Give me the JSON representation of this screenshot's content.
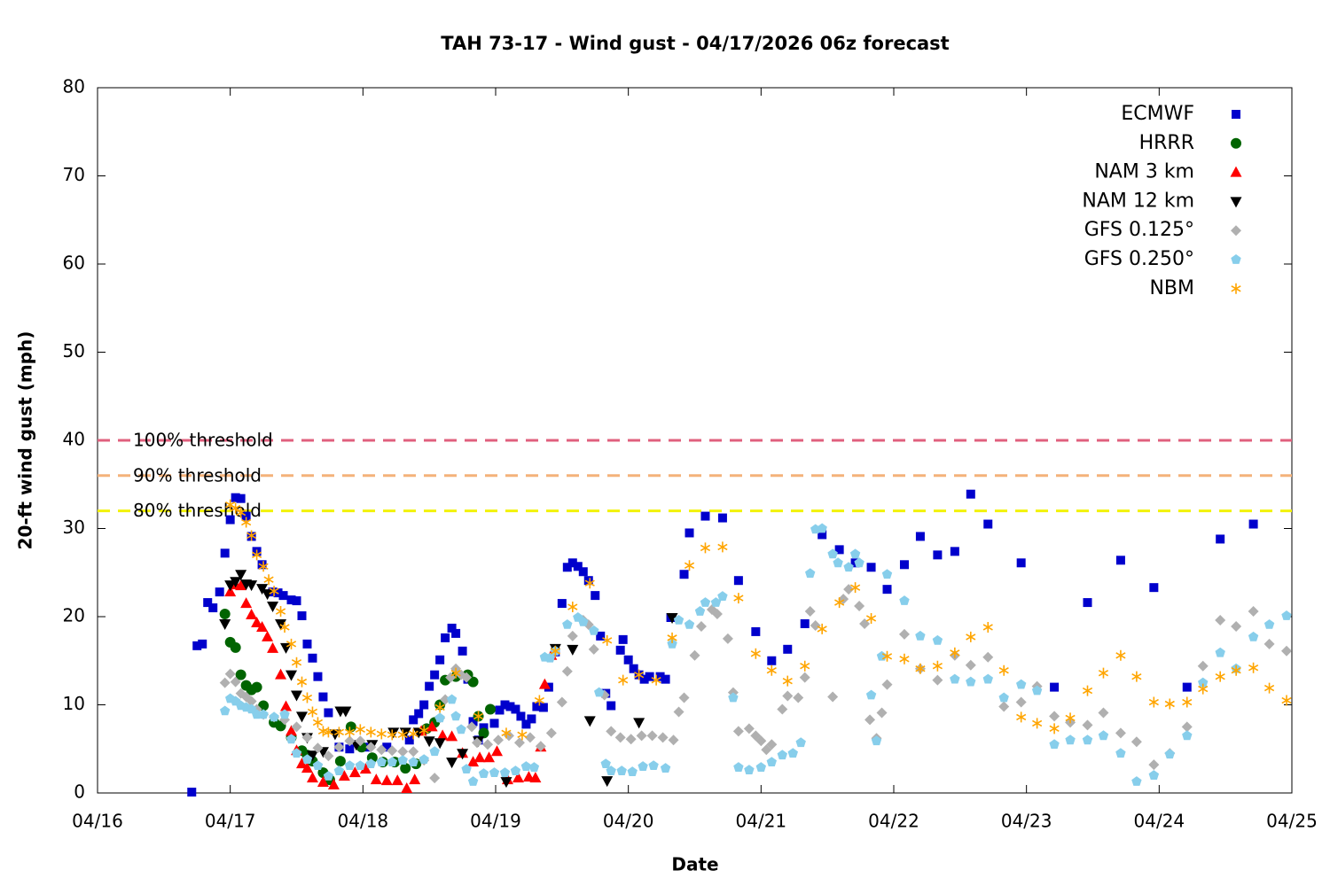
{
  "chart_data": {
    "type": "scatter",
    "title": "TAH 73-17 - Wind gust - 04/17/2026 06z forecast",
    "xlabel": "Date",
    "ylabel": "20-ft wind gust (mph)",
    "xlim": [
      16,
      25
    ],
    "ylim": [
      0,
      80
    ],
    "xticks": [
      {
        "value": 16,
        "label": "04/16"
      },
      {
        "value": 17,
        "label": "04/17"
      },
      {
        "value": 18,
        "label": "04/18"
      },
      {
        "value": 19,
        "label": "04/19"
      },
      {
        "value": 20,
        "label": "04/20"
      },
      {
        "value": 21,
        "label": "04/21"
      },
      {
        "value": 22,
        "label": "04/22"
      },
      {
        "value": 23,
        "label": "04/23"
      },
      {
        "value": 24,
        "label": "04/24"
      },
      {
        "value": 25,
        "label": "04/25"
      }
    ],
    "yticks": [
      0,
      10,
      20,
      30,
      40,
      50,
      60,
      70,
      80
    ],
    "grid": false,
    "legend": "top-right",
    "thresholds": [
      {
        "label": "100% threshold",
        "value": 40,
        "color": "#e0607e"
      },
      {
        "label": "90% threshold",
        "value": 36,
        "color": "#f4b27a"
      },
      {
        "label": "80% threshold",
        "value": 32,
        "color": "#f2f20a"
      }
    ],
    "series": [
      {
        "name": "ECMWF",
        "color": "#0000cc",
        "marker": "square",
        "x": [
          16.71,
          16.75,
          16.79,
          16.83,
          16.87,
          16.92,
          16.96,
          17.0,
          17.04,
          17.08,
          17.12,
          17.16,
          17.2,
          17.24,
          17.32,
          17.36,
          17.4,
          17.46,
          17.5,
          17.54,
          17.58,
          17.62,
          17.66,
          17.7,
          17.74,
          17.82,
          17.9,
          18.02,
          18.18,
          18.35,
          18.38,
          18.42,
          18.46,
          18.5,
          18.54,
          18.58,
          18.62,
          18.67,
          18.7,
          18.75,
          18.79,
          18.83,
          18.87,
          18.91,
          18.99,
          19.03,
          19.07,
          19.11,
          19.15,
          19.19,
          19.23,
          19.27,
          19.31,
          19.36,
          19.4,
          19.45,
          19.5,
          19.54,
          19.58,
          19.62,
          19.66,
          19.7,
          19.75,
          19.79,
          19.83,
          19.87,
          19.94,
          19.96,
          20.0,
          20.04,
          20.08,
          20.12,
          20.16,
          20.24,
          20.28,
          20.32,
          20.42,
          20.46,
          20.58,
          20.71,
          20.83,
          20.96,
          21.08,
          21.2,
          21.33,
          21.46,
          21.59,
          21.71,
          21.83,
          21.95,
          22.08,
          22.2,
          22.33,
          22.46,
          22.58,
          22.71,
          22.96,
          23.21,
          23.46,
          23.71,
          23.96,
          24.21,
          24.46,
          24.71
        ],
        "values": [
          0.1,
          16.7,
          16.9,
          21.6,
          21,
          22.8,
          27.2,
          31,
          33.5,
          33.4,
          31.4,
          29.1,
          27.4,
          25.9,
          22.8,
          22.7,
          22.4,
          21.9,
          21.8,
          20.1,
          16.9,
          15.3,
          13.2,
          10.9,
          9.1,
          5.2,
          5,
          5.2,
          5.2,
          6,
          8.3,
          9,
          10,
          12.1,
          13.4,
          15.1,
          17.6,
          18.7,
          18.1,
          16.1,
          12.9,
          8.1,
          6,
          7.4,
          7.9,
          9.4,
          10,
          9.8,
          9.5,
          8.7,
          7.8,
          8.4,
          9.8,
          9.7,
          12,
          16,
          21.5,
          25.6,
          26.1,
          25.7,
          25.1,
          24.1,
          22.4,
          17.8,
          11.3,
          9.9,
          16.2,
          17.4,
          15.1,
          14.1,
          13.4,
          12.9,
          13.2,
          13.2,
          12.9,
          19.9,
          24.8,
          29.5,
          31.4,
          31.2,
          24.1,
          18.3,
          15,
          16.3,
          19.2,
          29.3,
          27.6,
          26.1,
          25.6,
          23.1,
          25.9,
          29.1,
          27,
          27.4,
          33.9,
          30.5,
          26.1,
          12,
          21.6,
          26.4,
          23.3,
          12,
          28.8,
          30.5
        ]
      },
      {
        "name": "HRRR",
        "color": "#006400",
        "marker": "circle",
        "x": [
          16.96,
          17.0,
          17.04,
          17.08,
          17.12,
          17.16,
          17.2,
          17.25,
          17.33,
          17.38,
          17.46,
          17.54,
          17.58,
          17.62,
          17.7,
          17.75,
          17.83,
          17.91,
          17.99,
          18.07,
          18.15,
          18.24,
          18.32,
          18.4,
          18.48,
          18.54,
          18.58,
          18.62,
          18.7,
          18.79,
          18.83,
          18.87,
          18.91,
          18.96
        ],
        "values": [
          20.3,
          17.1,
          16.5,
          13.4,
          12.2,
          11.7,
          12,
          9.9,
          8,
          7.6,
          6.3,
          4.8,
          4.3,
          3.6,
          2.3,
          1.5,
          3.6,
          7.5,
          5.2,
          4,
          3.5,
          3.5,
          2.8,
          3.3,
          7.3,
          8,
          10,
          12.8,
          13.2,
          13.4,
          12.6,
          8.7,
          6.8,
          9.5
        ]
      },
      {
        "name": "NAM 3 km",
        "color": "#ff0000",
        "marker": "triangle-up",
        "x": [
          17.0,
          17.04,
          17.08,
          17.12,
          17.16,
          17.2,
          17.24,
          17.28,
          17.32,
          17.38,
          17.42,
          17.46,
          17.5,
          17.54,
          17.58,
          17.62,
          17.7,
          17.78,
          17.86,
          17.94,
          18.02,
          18.1,
          18.18,
          18.26,
          18.33,
          18.39,
          18.44,
          18.52,
          18.6,
          18.67,
          18.75,
          18.83,
          18.88,
          18.95,
          19.01,
          19.09,
          19.17,
          19.25,
          19.3,
          19.34,
          19.37,
          19.42
        ],
        "values": [
          22.8,
          23.6,
          23.5,
          21.5,
          20.2,
          19.3,
          18.8,
          17.7,
          16.4,
          13.4,
          9.8,
          7,
          4.8,
          3.3,
          2.8,
          1.7,
          1.2,
          0.9,
          1.9,
          2.3,
          2.7,
          1.5,
          1.4,
          1.4,
          0.5,
          1.5,
          7,
          7.5,
          6.5,
          6.4,
          4.5,
          3.5,
          4,
          4,
          4.7,
          1.5,
          1.7,
          1.8,
          1.7,
          5.2,
          12.3,
          15.6
        ]
      },
      {
        "name": "NAM 12 km",
        "color": "#000000",
        "marker": "triangle-down",
        "x": [
          16.96,
          17.0,
          17.04,
          17.08,
          17.12,
          17.16,
          17.24,
          17.28,
          17.32,
          17.38,
          17.42,
          17.46,
          17.5,
          17.54,
          17.58,
          17.62,
          17.7,
          17.79,
          17.83,
          17.87,
          17.95,
          18.07,
          18.23,
          18.32,
          18.42,
          18.5,
          18.58,
          18.67,
          18.75,
          18.87,
          19.08,
          19.45,
          19.58,
          19.71,
          19.84,
          20.08,
          20.33
        ],
        "values": [
          19.2,
          23.6,
          24,
          24.8,
          23.7,
          23.6,
          23.2,
          22.6,
          21.2,
          19.2,
          16.5,
          13.4,
          11.1,
          8.7,
          6.3,
          4.3,
          4.7,
          6.7,
          9.3,
          9.3,
          5.5,
          5.5,
          6.9,
          6.9,
          6.9,
          5.9,
          5.7,
          3.5,
          4.5,
          5.9,
          1.3,
          16.4,
          16.3,
          8.2,
          1.4,
          8,
          19.9
        ]
      },
      {
        "name": "GFS 0.125°",
        "color": "#b0b0b0",
        "marker": "diamond",
        "x": [
          16.96,
          17.0,
          17.04,
          17.08,
          17.12,
          17.16,
          17.2,
          17.25,
          17.33,
          17.41,
          17.5,
          17.58,
          17.66,
          17.74,
          17.82,
          17.9,
          17.98,
          18.06,
          18.14,
          18.22,
          18.3,
          18.38,
          18.46,
          18.54,
          18.58,
          18.62,
          18.66,
          18.7,
          18.74,
          18.78,
          18.82,
          18.86,
          18.94,
          19.02,
          19.1,
          19.18,
          19.26,
          19.34,
          19.42,
          19.5,
          19.54,
          19.58,
          19.66,
          19.7,
          19.74,
          19.82,
          19.87,
          19.94,
          20.02,
          20.1,
          20.18,
          20.26,
          20.34,
          20.38,
          20.42,
          20.5,
          20.55,
          20.63,
          20.67,
          20.75,
          20.79,
          20.83,
          20.91,
          20.96,
          21.0,
          21.04,
          21.08,
          21.16,
          21.2,
          21.28,
          21.33,
          21.37,
          21.41,
          21.54,
          21.62,
          21.66,
          21.74,
          21.78,
          21.82,
          21.87,
          21.91,
          21.95,
          22.08,
          22.2,
          22.33,
          22.46,
          22.58,
          22.71,
          22.83,
          22.96,
          23.08,
          23.21,
          23.33,
          23.46,
          23.58,
          23.71,
          23.83,
          23.96,
          24.08,
          24.21,
          24.33,
          24.46,
          24.58,
          24.71,
          24.83,
          24.96
        ],
        "values": [
          12.5,
          13.5,
          12.6,
          11.3,
          10.9,
          10.4,
          9.5,
          8.9,
          8.6,
          8.3,
          7.5,
          6.3,
          5.1,
          4.2,
          5.2,
          5.9,
          5.9,
          5.2,
          4.9,
          4.8,
          4.7,
          4.7,
          3.7,
          1.7,
          8.5,
          10.6,
          13.1,
          14.1,
          13.4,
          13.1,
          7.5,
          5.7,
          5.5,
          6,
          6.5,
          5.7,
          6.3,
          5.3,
          6.8,
          10.3,
          13.8,
          17.8,
          19.6,
          19.1,
          16.3,
          11.1,
          7,
          6.3,
          6.1,
          6.5,
          6.5,
          6.3,
          6,
          9.2,
          10.8,
          15.6,
          18.9,
          20.8,
          20.3,
          17.5,
          11.4,
          7,
          7.3,
          6.5,
          5.9,
          4.9,
          5.5,
          9.5,
          11,
          10.8,
          13.1,
          20.6,
          19,
          10.9,
          22,
          23.1,
          21.2,
          19.2,
          8.3,
          6.2,
          9.1,
          12.3,
          18,
          14.1,
          12.8,
          15.6,
          14.5,
          15.4,
          9.8,
          10.3,
          12.1,
          8.7,
          8,
          7.7,
          9.1,
          6.8,
          5.8,
          3.2,
          4.5,
          7.5,
          14.4,
          19.6,
          18.9,
          20.6,
          16.9,
          16.1
        ]
      },
      {
        "name": "GFS 0.250°",
        "color": "#87ceeb",
        "marker": "pentagon",
        "x": [
          16.96,
          17.0,
          17.04,
          17.08,
          17.12,
          17.16,
          17.2,
          17.25,
          17.33,
          17.41,
          17.46,
          17.5,
          17.58,
          17.66,
          17.74,
          17.82,
          17.9,
          17.98,
          18.06,
          18.14,
          18.22,
          18.3,
          18.38,
          18.46,
          18.54,
          18.58,
          18.67,
          18.7,
          18.74,
          18.78,
          18.83,
          18.91,
          18.99,
          19.07,
          19.15,
          19.23,
          19.29,
          19.37,
          19.41,
          19.45,
          19.54,
          19.62,
          19.66,
          19.74,
          19.78,
          19.83,
          19.87,
          19.95,
          20.03,
          20.11,
          20.19,
          20.28,
          20.33,
          20.38,
          20.46,
          20.54,
          20.58,
          20.66,
          20.71,
          20.79,
          20.83,
          20.91,
          21.0,
          21.08,
          21.16,
          21.24,
          21.3,
          21.37,
          21.41,
          21.46,
          21.54,
          21.58,
          21.66,
          21.71,
          21.74,
          21.83,
          21.87,
          21.91,
          21.95,
          22.08,
          22.2,
          22.33,
          22.46,
          22.58,
          22.71,
          22.83,
          22.96,
          23.08,
          23.21,
          23.33,
          23.46,
          23.58,
          23.71,
          23.83,
          23.96,
          24.08,
          24.21,
          24.33,
          24.46,
          24.58,
          24.71,
          24.83,
          24.96
        ],
        "values": [
          9.3,
          10.7,
          10.4,
          9.9,
          9.7,
          9.5,
          8.9,
          8.9,
          8.6,
          8.9,
          6.1,
          4.5,
          3.8,
          3.1,
          1.9,
          2.5,
          3.1,
          3.1,
          3.3,
          3.5,
          3.5,
          3.7,
          3.5,
          3.8,
          4.7,
          8.5,
          10.6,
          8.7,
          7.2,
          2.7,
          1.3,
          2.2,
          2.3,
          2.3,
          2.5,
          3,
          2.9,
          15.4,
          15.3,
          16.1,
          19.1,
          19.9,
          19.4,
          18.4,
          11.4,
          3.3,
          2.5,
          2.5,
          2.4,
          3,
          3.1,
          2.8,
          16.9,
          19.6,
          19.1,
          20.6,
          21.6,
          21.6,
          22.3,
          10.8,
          2.9,
          2.6,
          2.9,
          3.5,
          4.3,
          4.5,
          5.7,
          24.9,
          29.9,
          30,
          27.1,
          26.1,
          25.6,
          27.1,
          26.1,
          11.1,
          5.9,
          15.5,
          24.8,
          21.8,
          17.8,
          17.3,
          12.9,
          12.6,
          12.9,
          10.8,
          12.3,
          11.6,
          5.5,
          6,
          6,
          6.5,
          4.5,
          1.3,
          2,
          4.4,
          6.5,
          12.5,
          15.9,
          14.1,
          17.7,
          19.1,
          20.1
        ]
      },
      {
        "name": "NBM",
        "color": "#ffa500",
        "marker": "asterisk",
        "x": [
          17.0,
          17.04,
          17.08,
          17.12,
          17.16,
          17.2,
          17.25,
          17.29,
          17.33,
          17.38,
          17.41,
          17.46,
          17.5,
          17.54,
          17.58,
          17.62,
          17.66,
          17.7,
          17.74,
          17.82,
          17.9,
          17.98,
          18.06,
          18.14,
          18.22,
          18.3,
          18.38,
          18.46,
          18.58,
          18.7,
          18.87,
          19.08,
          19.2,
          19.33,
          19.45,
          19.58,
          19.71,
          19.84,
          19.96,
          20.08,
          20.21,
          20.33,
          20.46,
          20.58,
          20.71,
          20.83,
          20.96,
          21.08,
          21.2,
          21.33,
          21.46,
          21.59,
          21.71,
          21.83,
          21.95,
          22.08,
          22.2,
          22.33,
          22.46,
          22.58,
          22.71,
          22.83,
          22.96,
          23.08,
          23.21,
          23.33,
          23.46,
          23.58,
          23.71,
          23.83,
          23.96,
          24.08,
          24.21,
          24.33,
          24.46,
          24.58,
          24.71,
          24.83,
          24.96
        ],
        "values": [
          32.7,
          32.3,
          31.8,
          30.7,
          29.2,
          27,
          25.7,
          24.2,
          22.9,
          20.6,
          18.8,
          16.9,
          14.8,
          12.6,
          10.8,
          9.2,
          8,
          7,
          6.9,
          6.9,
          6.9,
          7.2,
          6.9,
          6.7,
          6.6,
          6.6,
          6.7,
          7.1,
          9.7,
          13.6,
          8.7,
          6.8,
          6.6,
          10.5,
          16.1,
          21.1,
          23.8,
          17.3,
          12.8,
          13.4,
          12.8,
          17.6,
          25.8,
          27.8,
          27.9,
          22.1,
          15.8,
          13.9,
          12.7,
          14.4,
          18.6,
          21.6,
          23.3,
          19.8,
          15.5,
          15.2,
          14.1,
          14.4,
          15.9,
          17.7,
          18.8,
          13.9,
          8.6,
          7.9,
          7.3,
          8.5,
          11.6,
          13.6,
          15.6,
          13.2,
          10.3,
          10.1,
          10.3,
          11.8,
          13.2,
          13.9,
          14.2,
          11.9,
          10.5
        ]
      }
    ]
  }
}
